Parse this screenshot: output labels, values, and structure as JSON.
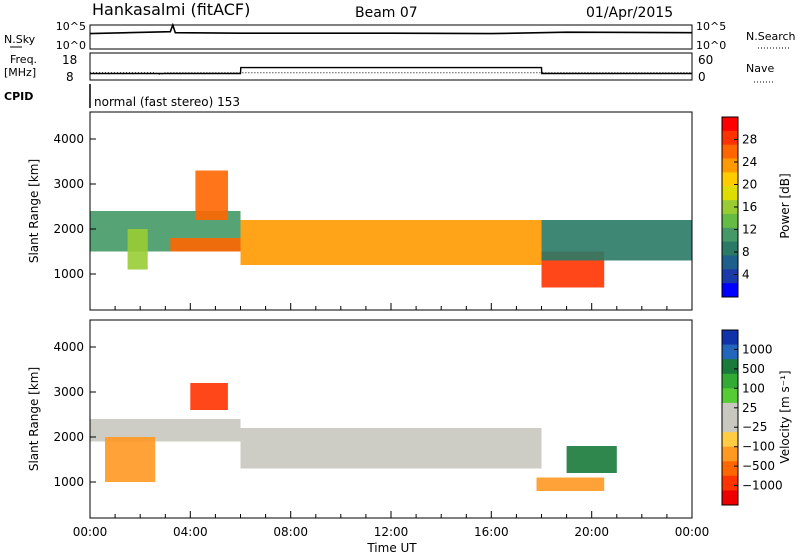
{
  "header": {
    "station": "Hankasalmi (fitACF)",
    "beam": "Beam 07",
    "date": "01/Apr/2015"
  },
  "colors": {
    "background": "#ffffff",
    "ink": "#000000",
    "gray_scatter": "#c8c8c0"
  },
  "top_panels": {
    "nsky": {
      "label": "N.Sky",
      "right_label": "N.Search",
      "ticks_left": [
        "10^5",
        "10^0"
      ],
      "ticks_right": [
        "10^5",
        "10^0"
      ]
    },
    "freq": {
      "label_line1": "Freq.",
      "label_line2": "[MHz]",
      "right_label": "Nave",
      "ticks_left": [
        "18",
        "8"
      ],
      "ticks_right": [
        "60",
        "0"
      ]
    },
    "cpid": {
      "label": "CPID",
      "text": "normal (fast stereo) 153"
    }
  },
  "x_axis": {
    "title": "Time UT",
    "ticks": [
      "00:00",
      "04:00",
      "08:00",
      "12:00",
      "16:00",
      "20:00",
      "00:00"
    ]
  },
  "power_panel": {
    "ylabel": "Slant Range [km]",
    "yticks": [
      "4000",
      "3000",
      "2000",
      "1000"
    ],
    "colorbar_label": "Power [dB]",
    "colorbar_ticks": [
      "28",
      "24",
      "20",
      "16",
      "12",
      "8",
      "4"
    ],
    "colorbar_colors": [
      "#ff0000",
      "#ff3300",
      "#ff6600",
      "#ff9900",
      "#ffcc00",
      "#dddd00",
      "#99cc33",
      "#66bb44",
      "#449966",
      "#2a7a66",
      "#1f5f8b",
      "#1a3aaa",
      "#0000ff"
    ]
  },
  "velocity_panel": {
    "ylabel": "Slant Range [km]",
    "yticks": [
      "4000",
      "3000",
      "2000",
      "1000"
    ],
    "colorbar_label": "Velocity [m s⁻¹]",
    "colorbar_ticks": [
      "1000",
      "500",
      "100",
      "25",
      "−25",
      "−100",
      "−500",
      "−1000"
    ],
    "colorbar_colors": [
      "#1133aa",
      "#2266bb",
      "#1a7a3a",
      "#33aa33",
      "#55cc33",
      "#c8c8c0",
      "#c8c8c0",
      "#ffcc44",
      "#ff9922",
      "#ff6600",
      "#ff3300",
      "#ee0000"
    ]
  },
  "chart_data": {
    "type": "heatmap",
    "x_unit": "hours UT",
    "y_unit": "km",
    "xlim": [
      0,
      24
    ],
    "ylim": [
      200,
      4600
    ],
    "nsky_trace": [
      [
        0,
        3.2
      ],
      [
        3.2,
        3.6
      ],
      [
        3.3,
        5.0
      ],
      [
        3.4,
        3.4
      ],
      [
        6,
        3.3
      ],
      [
        12,
        3.3
      ],
      [
        16,
        3.2
      ],
      [
        19,
        3.5
      ],
      [
        24,
        3.4
      ]
    ],
    "frequency_mhz": [
      [
        0,
        10.4
      ],
      [
        6,
        10.4
      ],
      [
        6.01,
        12.6
      ],
      [
        18,
        12.6
      ],
      [
        18.01,
        10.4
      ],
      [
        24,
        10.4
      ]
    ],
    "nave_dotted": [
      [
        0,
        16
      ],
      [
        2.6,
        16
      ],
      [
        2.8,
        12
      ],
      [
        3.0,
        16
      ],
      [
        24,
        16
      ]
    ],
    "power_regions": [
      {
        "t": [
          0,
          6
        ],
        "range": [
          1500,
          2400
        ],
        "db": 10
      },
      {
        "t": [
          1.5,
          2.3
        ],
        "range": [
          1100,
          2000
        ],
        "db": 16
      },
      {
        "t": [
          3.2,
          6
        ],
        "range": [
          1500,
          1800
        ],
        "db": 24
      },
      {
        "t": [
          4.2,
          5.5
        ],
        "range": [
          2200,
          3300
        ],
        "db": 26
      },
      {
        "t": [
          6,
          18
        ],
        "range": [
          1200,
          2200
        ],
        "db": 22
      },
      {
        "t": [
          18,
          20.5
        ],
        "range": [
          700,
          1500
        ],
        "db": 28
      },
      {
        "t": [
          18,
          24
        ],
        "range": [
          1300,
          2200
        ],
        "db": 8
      }
    ],
    "velocity_regions": [
      {
        "t": [
          0,
          6
        ],
        "range": [
          1900,
          2400
        ],
        "v": 0
      },
      {
        "t": [
          0.6,
          2.6
        ],
        "range": [
          1000,
          2000
        ],
        "v": -300
      },
      {
        "t": [
          4,
          5.5
        ],
        "range": [
          2600,
          3200
        ],
        "v": -800
      },
      {
        "t": [
          6,
          18
        ],
        "range": [
          1300,
          2200
        ],
        "v": 0
      },
      {
        "t": [
          17.8,
          20.5
        ],
        "range": [
          800,
          1100
        ],
        "v": -200
      },
      {
        "t": [
          19,
          21
        ],
        "range": [
          1200,
          1800
        ],
        "v": 400
      }
    ]
  }
}
